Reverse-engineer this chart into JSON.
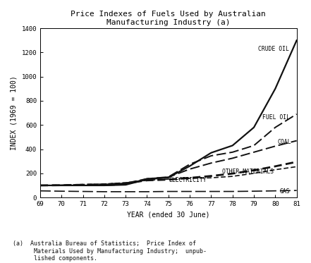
{
  "title": "Price Indexes of Fuels Used by Australian\nManufacturing Industry (a)",
  "xlabel": "YEAR (ended 30 June)",
  "ylabel": "INDEX (1969 = 100)",
  "years": [
    69,
    70,
    71,
    72,
    73,
    74,
    75,
    76,
    77,
    78,
    79,
    80,
    81
  ],
  "crude_oil": [
    100,
    100,
    100,
    100,
    105,
    150,
    165,
    260,
    370,
    430,
    580,
    900,
    1300
  ],
  "fuel_oil": [
    100,
    100,
    100,
    100,
    108,
    155,
    170,
    275,
    345,
    375,
    430,
    580,
    690
  ],
  "coal": [
    100,
    100,
    105,
    108,
    118,
    155,
    168,
    235,
    285,
    325,
    375,
    425,
    470
  ],
  "electricity": [
    100,
    103,
    108,
    112,
    122,
    142,
    152,
    158,
    163,
    175,
    200,
    230,
    255
  ],
  "other_materials": [
    100,
    102,
    105,
    108,
    118,
    142,
    148,
    162,
    178,
    198,
    225,
    258,
    295
  ],
  "gas": [
    55,
    52,
    50,
    48,
    48,
    48,
    50,
    50,
    50,
    50,
    52,
    55,
    58
  ],
  "xlim": [
    69,
    81
  ],
  "ylim": [
    0,
    1400
  ],
  "yticks": [
    0,
    200,
    400,
    600,
    800,
    1000,
    1200,
    1400
  ],
  "xticks": [
    69,
    70,
    71,
    72,
    73,
    74,
    75,
    76,
    77,
    78,
    79,
    80,
    81
  ],
  "xticklabels": [
    "69",
    "70",
    "71",
    "72",
    "73",
    "74",
    "75",
    "76",
    "77",
    "78",
    "79",
    "80",
    "81"
  ],
  "footnote": "(a)  Australia Bureau of Statistics;  Price Index of\n      Materials Used by Manufacturing Industry;  unpub-\n      lished components.",
  "bg_color": "#ffffff",
  "line_color": "#111111",
  "font_family": "DejaVu Sans Mono"
}
